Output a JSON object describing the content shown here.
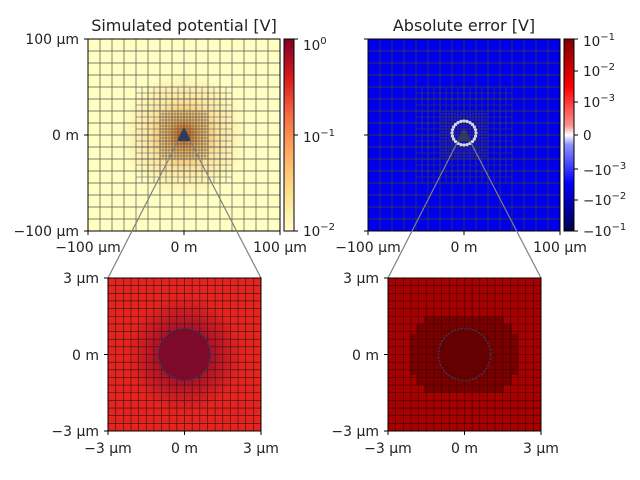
{
  "chart_data": [
    {
      "type": "heatmap",
      "title": "Simulated potential [V]",
      "xlim": [
        "-100 µm",
        "100 µm"
      ],
      "ylim": [
        "-100 µm",
        "100 µm"
      ],
      "x_tick_labels": [
        "−100 µm",
        "0 m",
        "100 µm"
      ],
      "y_tick_labels": [
        "100 µm",
        "0 m",
        "−100 µm"
      ],
      "colorbar": {
        "scale": "log",
        "range": [
          0.01,
          1
        ],
        "tick_labels": [
          "10",
          "10",
          "10"
        ],
        "tick_exponents": [
          "0",
          "−1",
          "−2"
        ],
        "colormap": "YlOrRd"
      },
      "grid": true,
      "marker": "triangle at origin"
    },
    {
      "type": "heatmap",
      "title": "Absolute error [V]",
      "xlim": [
        "-100 µm",
        "100 µm"
      ],
      "ylim": [
        "-100 µm",
        "100 µm"
      ],
      "x_tick_labels": [
        "−100 µm",
        "0 m",
        "100 µm"
      ],
      "y_tick_labels": [
        "",
        "",
        ""
      ],
      "colorbar": {
        "scale": "symlog",
        "range": [
          -0.1,
          0.1
        ],
        "tick_labels": [
          "10",
          "10",
          "10",
          "0",
          "−10",
          "−10",
          "−10"
        ],
        "tick_exponents": [
          "−1",
          "−2",
          "−3",
          "",
          "−3",
          "−2",
          "−1"
        ],
        "colormap": "seismic"
      },
      "grid": true,
      "marker": "triangle at origin"
    },
    {
      "type": "heatmap",
      "title": "",
      "inset_of": 0,
      "xlim": [
        "-3 µm",
        "3 µm"
      ],
      "ylim": [
        "-3 µm",
        "3 µm"
      ],
      "x_tick_labels": [
        "−3 µm",
        "0 m",
        "3 µm"
      ],
      "y_tick_labels": [
        "3 µm",
        "0 m",
        "−3 µm"
      ],
      "grid": true,
      "marker": "circle at origin"
    },
    {
      "type": "heatmap",
      "title": "",
      "inset_of": 1,
      "xlim": [
        "-3 µm",
        "3 µm"
      ],
      "ylim": [
        "-3 µm",
        "3 µm"
      ],
      "x_tick_labels": [
        "−3 µm",
        "0 m",
        "3 µm"
      ],
      "y_tick_labels": [
        "3 µm",
        "0 m",
        "−3 µm"
      ],
      "grid": true,
      "marker": "circle at origin"
    }
  ],
  "colors": {
    "potential_background": "#ffffc2",
    "potential_center": "#e28a2e",
    "error_background": "#0000e8",
    "inset_left": "#e3241f",
    "inset_left_center": "#8c0f2a",
    "inset_right": "#a80000",
    "inset_right_center": "#6a0000",
    "connector": "#808080"
  }
}
